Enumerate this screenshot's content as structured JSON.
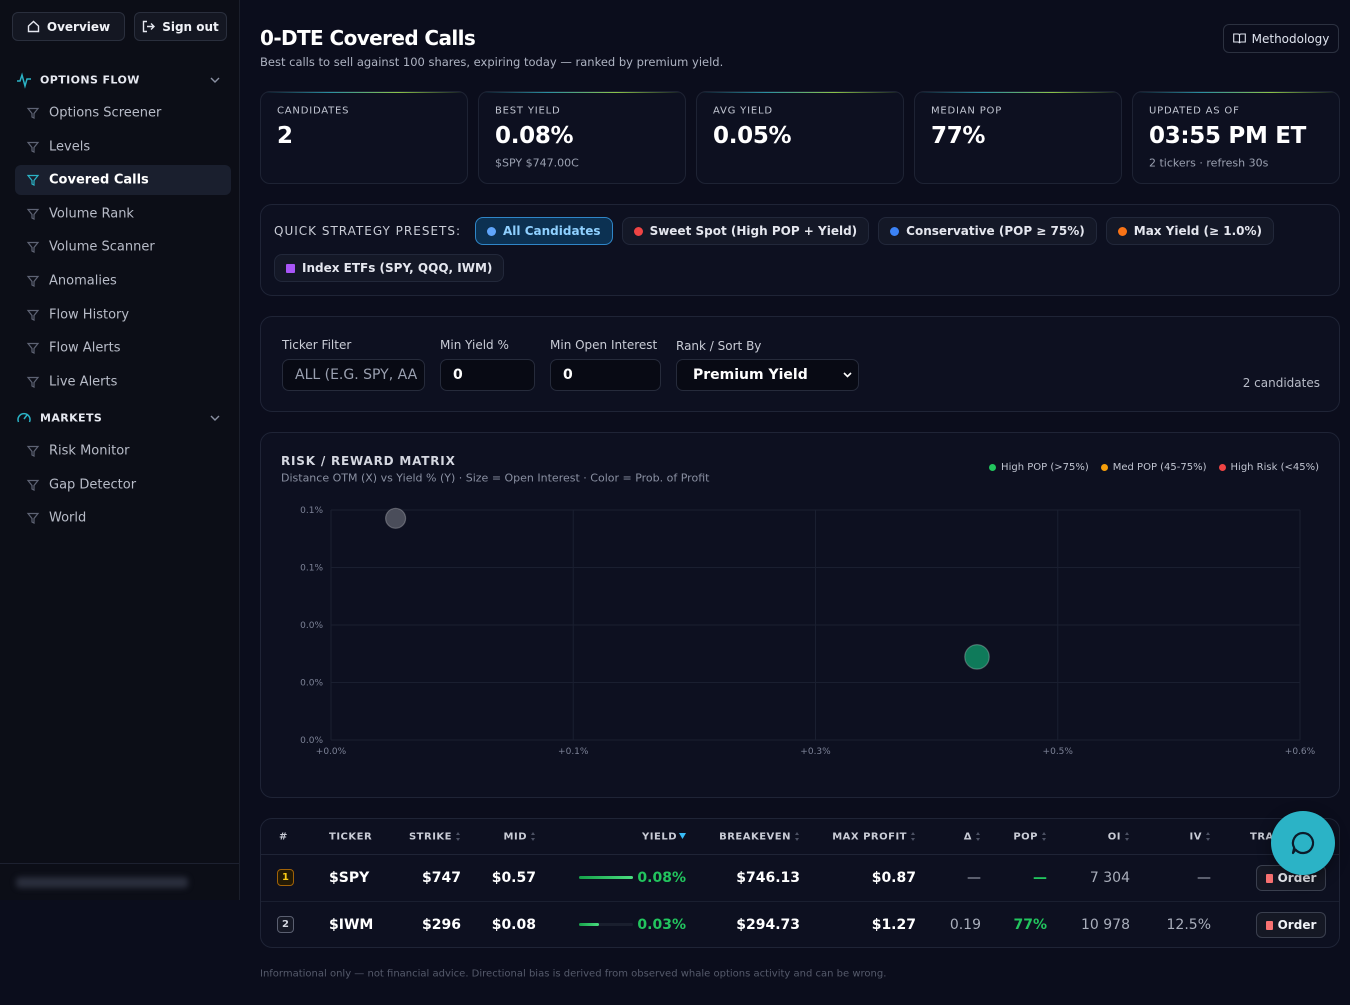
{
  "sidebar": {
    "buttons": [
      "Overview",
      "Sign out"
    ],
    "sections": [
      {
        "title": "OPTIONS FLOW",
        "items": [
          {
            "label": "Options Screener"
          },
          {
            "label": "Levels"
          },
          {
            "label": "Covered Calls",
            "active": true
          },
          {
            "label": "Volume Rank"
          },
          {
            "label": "Volume Scanner"
          },
          {
            "label": "Anomalies"
          },
          {
            "label": "Flow History"
          },
          {
            "label": "Flow Alerts"
          },
          {
            "label": "Live Alerts"
          }
        ]
      },
      {
        "title": "MARKETS",
        "items": [
          {
            "label": "Risk Monitor"
          },
          {
            "label": "Gap Detector"
          },
          {
            "label": "World"
          }
        ]
      }
    ]
  },
  "header": {
    "title": "0-DTE Covered Calls",
    "subtitle": "Best calls to sell against 100 shares, expiring today — ranked by premium yield.",
    "button": "Methodology"
  },
  "stats": [
    {
      "label": "CANDIDATES",
      "value": "2"
    },
    {
      "label": "BEST YIELD",
      "value": "0.08%",
      "note": "$SPY $747.00C"
    },
    {
      "label": "AVG YIELD",
      "value": "0.05%"
    },
    {
      "label": "MEDIAN POP",
      "value": "77%"
    },
    {
      "label": "UPDATED AS OF",
      "value": "03:55 PM ET",
      "note": "2 tickers · refresh 30s"
    }
  ],
  "presets": {
    "label": "QUICK STRATEGY PRESETS:",
    "items": [
      {
        "label": "All Candidates",
        "active": true
      },
      {
        "label": "Sweet Spot (High POP + Yield)"
      },
      {
        "label": "Conservative (POP ≥ 75%)"
      },
      {
        "label": "Max Yield (≥ 1.0%)"
      },
      {
        "label": "Index ETFs (SPY, QQQ, IWM)"
      }
    ]
  },
  "filters": {
    "fields": [
      {
        "label": "Ticker Filter",
        "placeholder": "ALL (E.G. SPY, AA"
      },
      {
        "label": "Min Yield %",
        "value": "0"
      },
      {
        "label": "Min Open Interest",
        "value": "0"
      },
      {
        "label": "Rank / Sort By",
        "value": "Premium Yield",
        "select": true
      }
    ],
    "count": "2 candidates"
  },
  "matrix": {
    "title": "RISK / REWARD MATRIX",
    "subtitle": "Distance OTM (X) vs Yield % (Y) · Size = Open Interest · Color = Prob. of Profit",
    "legend": [
      {
        "name": "High POP (>75%)",
        "color": "#22c55e"
      },
      {
        "name": "Med POP (45-75%)",
        "color": "#f59e0b"
      },
      {
        "name": "High Risk (<45%)",
        "color": "#ef4444"
      }
    ],
    "chart_data": {
      "type": "scatter",
      "x": [
        0.04,
        0.4
      ],
      "y": [
        0.08,
        0.03
      ],
      "sizes": [
        7304,
        10978
      ],
      "colors": [
        "#4a4d5a",
        "#0f7a5a"
      ],
      "xlim": [
        0,
        0.6
      ],
      "ylim": [
        0,
        0.083
      ],
      "xticks": [
        {
          "value": 0,
          "label": "+0.0%"
        },
        {
          "value": 0.15,
          "label": "+0.1%"
        },
        {
          "value": 0.3,
          "label": "+0.3%"
        },
        {
          "value": 0.45,
          "label": "+0.5%"
        },
        {
          "value": 0.6,
          "label": "+0.6%"
        }
      ],
      "yticks": [
        {
          "value": 0,
          "label": "0.0%"
        },
        {
          "value": 0.02075,
          "label": "0.0%"
        },
        {
          "value": 0.0415,
          "label": "0.0%"
        },
        {
          "value": 0.06225,
          "label": "0.1%"
        },
        {
          "value": 0.083,
          "label": "0.1%"
        }
      ],
      "grid": true
    }
  },
  "table": {
    "columns": [
      {
        "label": "#"
      },
      {
        "label": "TICKER"
      },
      {
        "label": "STRIKE",
        "sort": "both"
      },
      {
        "label": "MID",
        "sort": "both"
      },
      {
        "label": "YIELD",
        "sort": "desc"
      },
      {
        "label": "BREAKEVEN",
        "sort": "both"
      },
      {
        "label": "MAX PROFIT",
        "sort": "both"
      },
      {
        "label": "Δ",
        "sort": "both"
      },
      {
        "label": "POP",
        "sort": "both"
      },
      {
        "label": "OI",
        "sort": "both"
      },
      {
        "label": "IV",
        "sort": "both"
      },
      {
        "label": "TRADE"
      }
    ],
    "rows": [
      {
        "rank": "1",
        "ticker": "$SPY",
        "strike": "$747",
        "mid": "$0.57",
        "yield": {
          "value": 0.08,
          "label": "0.08%"
        },
        "breakeven": "$746.13",
        "max_profit": "$0.87",
        "delta": "—",
        "pop": "—",
        "oi": "7 304",
        "iv": "—",
        "action": "Order"
      },
      {
        "rank": "2",
        "ticker": "$IWM",
        "strike": "$296",
        "mid": "$0.08",
        "yield": {
          "value": 0.03,
          "label": "0.03%"
        },
        "breakeven": "$294.73",
        "max_profit": "$1.27",
        "delta": "0.19",
        "pop": "77%",
        "oi": "10 978",
        "iv": "12.5%",
        "action": "Order"
      }
    ]
  },
  "footer": "Informational only — not financial advice. Directional bias is derived from observed whale options activity and can be wrong."
}
